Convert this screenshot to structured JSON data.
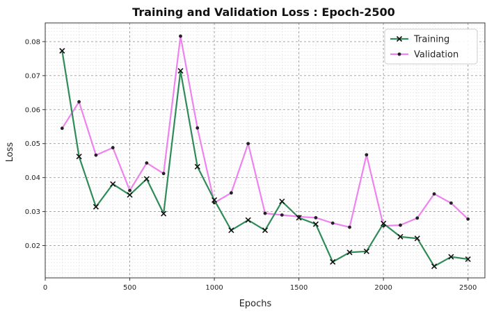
{
  "chart_data": {
    "type": "line",
    "title": "Training and Validation Loss : Epoch-2500",
    "xlabel": "Epochs",
    "ylabel": "Loss",
    "xlim": [
      0,
      2600
    ],
    "ylim": [
      0.0105,
      0.0855
    ],
    "xticks": [
      0,
      500,
      1000,
      1500,
      2000,
      2500
    ],
    "yticks": [
      0.02,
      0.03,
      0.04,
      0.05,
      0.06,
      0.07,
      0.08
    ],
    "xtick_labels": [
      "0",
      "500",
      "1000",
      "1500",
      "2000",
      "2500"
    ],
    "ytick_labels": [
      "0.02",
      "0.03",
      "0.04",
      "0.05",
      "0.06",
      "0.07",
      "0.08"
    ],
    "grid": true,
    "legend_position": "top-right",
    "x": [
      100,
      200,
      300,
      400,
      500,
      600,
      700,
      800,
      900,
      1000,
      1100,
      1200,
      1300,
      1400,
      1500,
      1600,
      1700,
      1800,
      1900,
      2000,
      2100,
      2200,
      2300,
      2400,
      2500
    ],
    "series": [
      {
        "name": "Training",
        "color": "#2e8b57",
        "marker": "x",
        "values": [
          0.0773,
          0.0462,
          0.0314,
          0.0381,
          0.0349,
          0.0396,
          0.0294,
          0.0714,
          0.0432,
          0.0334,
          0.0245,
          0.0275,
          0.0245,
          0.033,
          0.0282,
          0.0263,
          0.0152,
          0.018,
          0.0183,
          0.0265,
          0.0226,
          0.0221,
          0.0139,
          0.0167,
          0.016
        ]
      },
      {
        "name": "Validation",
        "color": "#ee82ee",
        "marker": "o",
        "values": [
          0.0545,
          0.0623,
          0.0466,
          0.0488,
          0.0362,
          0.0443,
          0.0412,
          0.0816,
          0.0546,
          0.0326,
          0.0355,
          0.05,
          0.0295,
          0.029,
          0.0285,
          0.0282,
          0.0266,
          0.0254,
          0.0467,
          0.0258,
          0.026,
          0.0281,
          0.0352,
          0.0325,
          0.0278
        ]
      }
    ]
  }
}
